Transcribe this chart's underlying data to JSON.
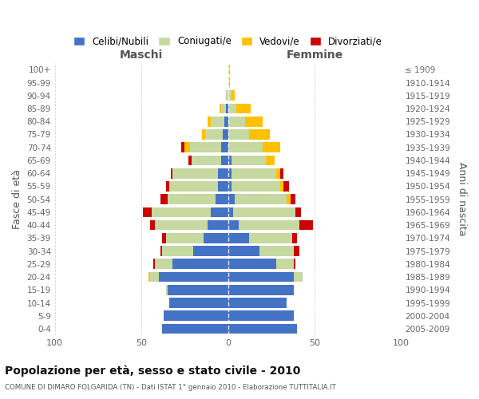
{
  "age_groups": [
    "0-4",
    "5-9",
    "10-14",
    "15-19",
    "20-24",
    "25-29",
    "30-34",
    "35-39",
    "40-44",
    "45-49",
    "50-54",
    "55-59",
    "60-64",
    "65-69",
    "70-74",
    "75-79",
    "80-84",
    "85-89",
    "90-94",
    "95-99",
    "100+"
  ],
  "birth_years": [
    "2005-2009",
    "2000-2004",
    "1995-1999",
    "1990-1994",
    "1985-1989",
    "1980-1984",
    "1975-1979",
    "1970-1974",
    "1965-1969",
    "1960-1964",
    "1955-1959",
    "1950-1954",
    "1945-1949",
    "1940-1944",
    "1935-1939",
    "1930-1934",
    "1925-1929",
    "1920-1924",
    "1915-1919",
    "1910-1914",
    "≤ 1909"
  ],
  "colors": {
    "celibi": "#4472c4",
    "coniugati": "#c5d9a0",
    "vedovi": "#ffc000",
    "divorziati": "#cc0000"
  },
  "maschi": {
    "celibi": [
      38,
      37,
      34,
      35,
      40,
      32,
      20,
      14,
      12,
      10,
      7,
      6,
      6,
      4,
      4,
      3,
      2,
      1,
      0,
      0,
      0
    ],
    "coniugati": [
      0,
      0,
      0,
      1,
      5,
      10,
      18,
      22,
      30,
      34,
      28,
      28,
      26,
      17,
      18,
      10,
      8,
      3,
      1,
      0,
      0
    ],
    "vedovi": [
      0,
      0,
      0,
      0,
      1,
      0,
      0,
      0,
      0,
      0,
      0,
      0,
      0,
      0,
      3,
      2,
      2,
      1,
      0,
      0,
      0
    ],
    "divorziati": [
      0,
      0,
      0,
      0,
      0,
      1,
      1,
      2,
      3,
      5,
      4,
      2,
      1,
      2,
      2,
      0,
      0,
      0,
      0,
      0,
      0
    ]
  },
  "femmine": {
    "celibi": [
      40,
      38,
      34,
      38,
      38,
      28,
      18,
      12,
      6,
      3,
      4,
      2,
      2,
      2,
      0,
      0,
      0,
      0,
      0,
      0,
      0
    ],
    "coniugati": [
      0,
      0,
      0,
      0,
      5,
      10,
      20,
      25,
      35,
      36,
      30,
      28,
      26,
      20,
      20,
      12,
      10,
      5,
      2,
      0,
      0
    ],
    "vedovi": [
      0,
      0,
      0,
      0,
      0,
      0,
      0,
      0,
      0,
      0,
      2,
      2,
      2,
      5,
      10,
      12,
      10,
      8,
      2,
      1,
      1
    ],
    "divorziati": [
      0,
      0,
      0,
      0,
      0,
      1,
      3,
      3,
      8,
      3,
      3,
      3,
      2,
      0,
      0,
      0,
      0,
      0,
      0,
      0,
      0
    ]
  },
  "xlim": 100,
  "title": "Popolazione per età, sesso e stato civile - 2010",
  "subtitle": "COMUNE DI DIMARO FOLGARIDA (TN) - Dati ISTAT 1° gennaio 2010 - Elaborazione TUTTITALIA.IT",
  "xlabel_left": "Maschi",
  "xlabel_right": "Femmine",
  "ylabel_left": "Fasce di età",
  "ylabel_right": "Anni di nascita",
  "legend_labels": [
    "Celibi/Nubili",
    "Coniugati/e",
    "Vedovi/e",
    "Divorziati/e"
  ],
  "bg_color": "#ffffff",
  "grid_color": "#cccccc"
}
